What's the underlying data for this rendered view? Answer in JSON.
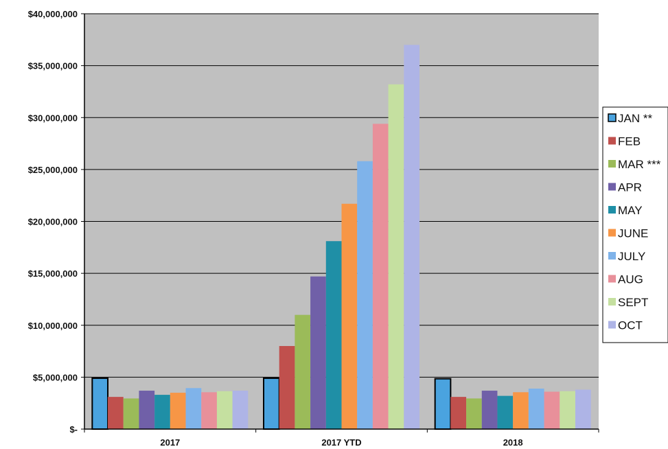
{
  "chart_data": {
    "type": "bar",
    "categories": [
      "2017",
      "2017 YTD",
      "2018"
    ],
    "ylim": [
      0,
      40000000
    ],
    "y_ticks": [
      {
        "value": 0,
        "label": "$-"
      },
      {
        "value": 5000000,
        "label": "$5,000,000"
      },
      {
        "value": 10000000,
        "label": "$10,000,000"
      },
      {
        "value": 15000000,
        "label": "$15,000,000"
      },
      {
        "value": 20000000,
        "label": "$20,000,000"
      },
      {
        "value": 25000000,
        "label": "$25,000,000"
      },
      {
        "value": 30000000,
        "label": "$30,000,000"
      },
      {
        "value": 35000000,
        "label": "$35,000,000"
      },
      {
        "value": 40000000,
        "label": "$40,000,000"
      }
    ],
    "grid": true,
    "legend_position": "right",
    "plot_background": "#c0c0c0",
    "series": [
      {
        "name": "JAN **",
        "color": "#4aa3df",
        "outlined": true,
        "values": [
          4900000,
          4900000,
          4850000
        ]
      },
      {
        "name": "FEB",
        "color": "#c0504d",
        "values": [
          3100000,
          8000000,
          3100000
        ]
      },
      {
        "name": "MAR ***",
        "color": "#9bbb59",
        "values": [
          2950000,
          11000000,
          2950000
        ]
      },
      {
        "name": "APR",
        "color": "#7060a8",
        "values": [
          3700000,
          14700000,
          3700000
        ]
      },
      {
        "name": "MAY",
        "color": "#1f8fa6",
        "values": [
          3300000,
          18100000,
          3200000
        ]
      },
      {
        "name": "JUNE",
        "color": "#f79646",
        "values": [
          3500000,
          21700000,
          3550000
        ]
      },
      {
        "name": "JULY",
        "color": "#7fb3ea",
        "values": [
          3950000,
          25800000,
          3900000
        ]
      },
      {
        "name": "AUG",
        "color": "#e8909a",
        "values": [
          3550000,
          29400000,
          3600000
        ]
      },
      {
        "name": "SEPT",
        "color": "#c5e0a0",
        "values": [
          3650000,
          33200000,
          3650000
        ]
      },
      {
        "name": "OCT",
        "color": "#aeb4e6",
        "values": [
          3700000,
          37000000,
          3800000
        ]
      }
    ]
  }
}
